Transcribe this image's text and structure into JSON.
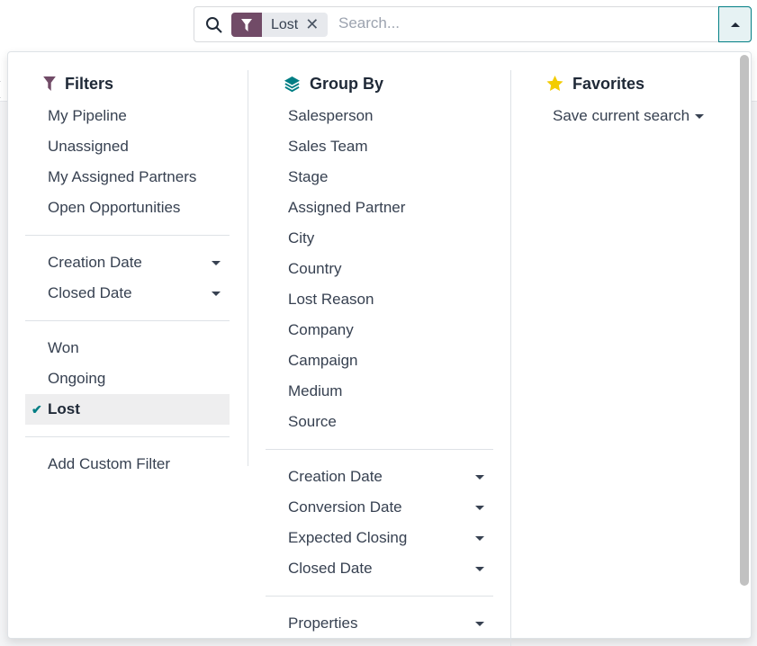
{
  "search": {
    "facet_label": "Lost",
    "placeholder": "Search..."
  },
  "filters": {
    "title": "Filters",
    "groups": [
      [
        {
          "label": "My Pipeline"
        },
        {
          "label": "Unassigned"
        },
        {
          "label": "My Assigned Partners"
        },
        {
          "label": "Open Opportunities"
        }
      ],
      [
        {
          "label": "Creation Date",
          "caret": true
        },
        {
          "label": "Closed Date",
          "caret": true
        }
      ],
      [
        {
          "label": "Won"
        },
        {
          "label": "Ongoing"
        },
        {
          "label": "Lost",
          "selected": true
        }
      ],
      [
        {
          "label": "Add Custom Filter"
        }
      ]
    ]
  },
  "groupby": {
    "title": "Group By",
    "groups": [
      [
        {
          "label": "Salesperson"
        },
        {
          "label": "Sales Team"
        },
        {
          "label": "Stage"
        },
        {
          "label": "Assigned Partner"
        },
        {
          "label": "City"
        },
        {
          "label": "Country"
        },
        {
          "label": "Lost Reason"
        },
        {
          "label": "Company"
        },
        {
          "label": "Campaign"
        },
        {
          "label": "Medium"
        },
        {
          "label": "Source"
        }
      ],
      [
        {
          "label": "Creation Date",
          "caret": true
        },
        {
          "label": "Conversion Date",
          "caret": true
        },
        {
          "label": "Expected Closing",
          "caret": true
        },
        {
          "label": "Closed Date",
          "caret": true
        }
      ],
      [
        {
          "label": "Properties",
          "caret": true
        }
      ]
    ]
  },
  "favorites": {
    "title": "Favorites",
    "items": [
      {
        "label": "Save current search",
        "caret": true
      }
    ]
  },
  "colors": {
    "filter": "#714b67",
    "accent": "#017e84",
    "star": "#f3cc00"
  }
}
